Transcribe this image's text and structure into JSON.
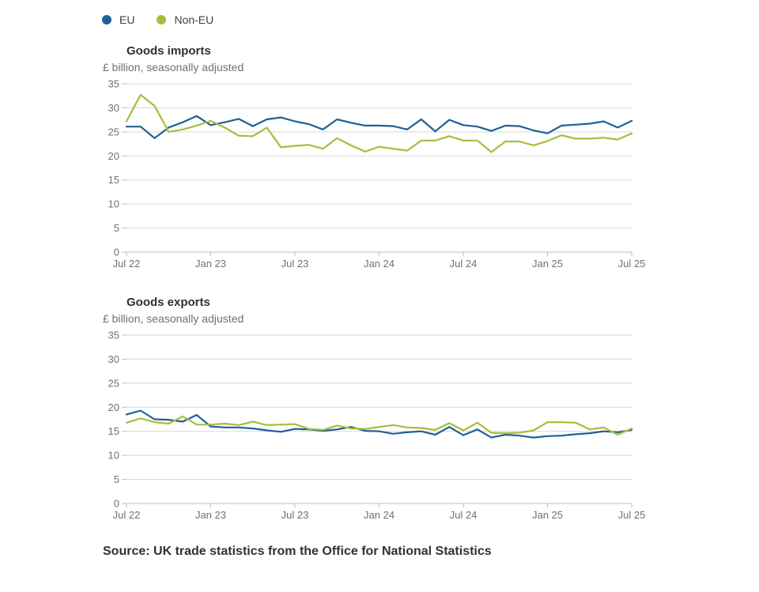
{
  "legend": {
    "eu": {
      "label": "EU",
      "color": "#206095"
    },
    "non_eu": {
      "label": "Non-EU",
      "color": "#a8bd3a"
    }
  },
  "source": "Source: UK trade statistics from the Office for National Statistics",
  "chart_data": [
    {
      "type": "line",
      "title": "Goods imports",
      "subtitle": "£ billion, seasonally adjusted",
      "x": [
        "2022-07",
        "2022-08",
        "2022-09",
        "2022-10",
        "2022-11",
        "2022-12",
        "2023-01",
        "2023-02",
        "2023-03",
        "2023-04",
        "2023-05",
        "2023-06",
        "2023-07",
        "2023-08",
        "2023-09",
        "2023-10",
        "2023-11",
        "2023-12",
        "2024-01",
        "2024-02",
        "2024-03",
        "2024-04",
        "2024-05",
        "2024-06",
        "2024-07",
        "2024-08",
        "2024-09",
        "2024-10",
        "2024-11",
        "2024-12",
        "2025-01",
        "2025-02",
        "2025-03",
        "2025-04",
        "2025-05",
        "2025-06",
        "2025-07"
      ],
      "x_ticks": [
        "Jul 22",
        "Jan 23",
        "Jul 23",
        "Jan 24",
        "Jul 24",
        "Jan 25",
        "Jul 25"
      ],
      "y_ticks": [
        0,
        5,
        10,
        15,
        20,
        25,
        30,
        35
      ],
      "ylim": [
        0,
        35
      ],
      "grid": true,
      "series": [
        {
          "name": "EU",
          "color": "#206095",
          "values": [
            26.1,
            26.1,
            23.7,
            25.9,
            27.0,
            28.3,
            26.4,
            27.0,
            27.7,
            26.2,
            27.6,
            28.0,
            27.2,
            26.6,
            25.5,
            27.6,
            26.9,
            26.3,
            26.3,
            26.2,
            25.5,
            27.6,
            25.1,
            27.5,
            26.4,
            26.1,
            25.2,
            26.3,
            26.2,
            25.3,
            24.7,
            26.3,
            26.5,
            26.7,
            27.2,
            25.9,
            27.3
          ]
        },
        {
          "name": "Non-EU",
          "color": "#a8bd3a",
          "values": [
            27.2,
            32.7,
            30.4,
            25.0,
            25.5,
            26.3,
            27.3,
            25.9,
            24.2,
            24.1,
            25.9,
            21.8,
            22.1,
            22.3,
            21.5,
            23.7,
            22.2,
            20.9,
            21.9,
            21.5,
            21.1,
            23.2,
            23.2,
            24.1,
            23.2,
            23.2,
            20.8,
            23.0,
            23.0,
            22.2,
            23.1,
            24.3,
            23.6,
            23.6,
            23.8,
            23.4,
            24.7
          ]
        }
      ]
    },
    {
      "type": "line",
      "title": "Goods exports",
      "subtitle": "£ billion, seasonally adjusted",
      "x": [
        "2022-07",
        "2022-08",
        "2022-09",
        "2022-10",
        "2022-11",
        "2022-12",
        "2023-01",
        "2023-02",
        "2023-03",
        "2023-04",
        "2023-05",
        "2023-06",
        "2023-07",
        "2023-08",
        "2023-09",
        "2023-10",
        "2023-11",
        "2023-12",
        "2024-01",
        "2024-02",
        "2024-03",
        "2024-04",
        "2024-05",
        "2024-06",
        "2024-07",
        "2024-08",
        "2024-09",
        "2024-10",
        "2024-11",
        "2024-12",
        "2025-01",
        "2025-02",
        "2025-03",
        "2025-04",
        "2025-05",
        "2025-06",
        "2025-07"
      ],
      "x_ticks": [
        "Jul 22",
        "Jan 23",
        "Jul 23",
        "Jan 24",
        "Jul 24",
        "Jan 25",
        "Jul 25"
      ],
      "y_ticks": [
        0,
        5,
        10,
        15,
        20,
        25,
        30,
        35
      ],
      "ylim": [
        0,
        35
      ],
      "grid": true,
      "series": [
        {
          "name": "EU",
          "color": "#206095",
          "values": [
            18.5,
            19.3,
            17.5,
            17.4,
            17.0,
            18.4,
            16.0,
            15.8,
            15.8,
            15.6,
            15.2,
            14.9,
            15.5,
            15.4,
            15.1,
            15.4,
            15.9,
            15.1,
            15.0,
            14.5,
            14.8,
            15.0,
            14.3,
            15.9,
            14.2,
            15.4,
            13.7,
            14.3,
            14.1,
            13.7,
            14.0,
            14.1,
            14.4,
            14.6,
            15.0,
            14.8,
            15.3
          ]
        },
        {
          "name": "Non-EU",
          "color": "#a8bd3a",
          "values": [
            16.8,
            17.7,
            16.9,
            16.6,
            18.1,
            16.4,
            16.4,
            16.6,
            16.3,
            17.0,
            16.3,
            16.4,
            16.5,
            15.5,
            15.3,
            16.2,
            15.6,
            15.5,
            15.9,
            16.3,
            15.8,
            15.7,
            15.3,
            16.7,
            15.2,
            16.8,
            14.7,
            14.6,
            14.7,
            15.2,
            16.9,
            16.9,
            16.8,
            15.4,
            15.8,
            14.3,
            15.6
          ]
        }
      ]
    }
  ]
}
